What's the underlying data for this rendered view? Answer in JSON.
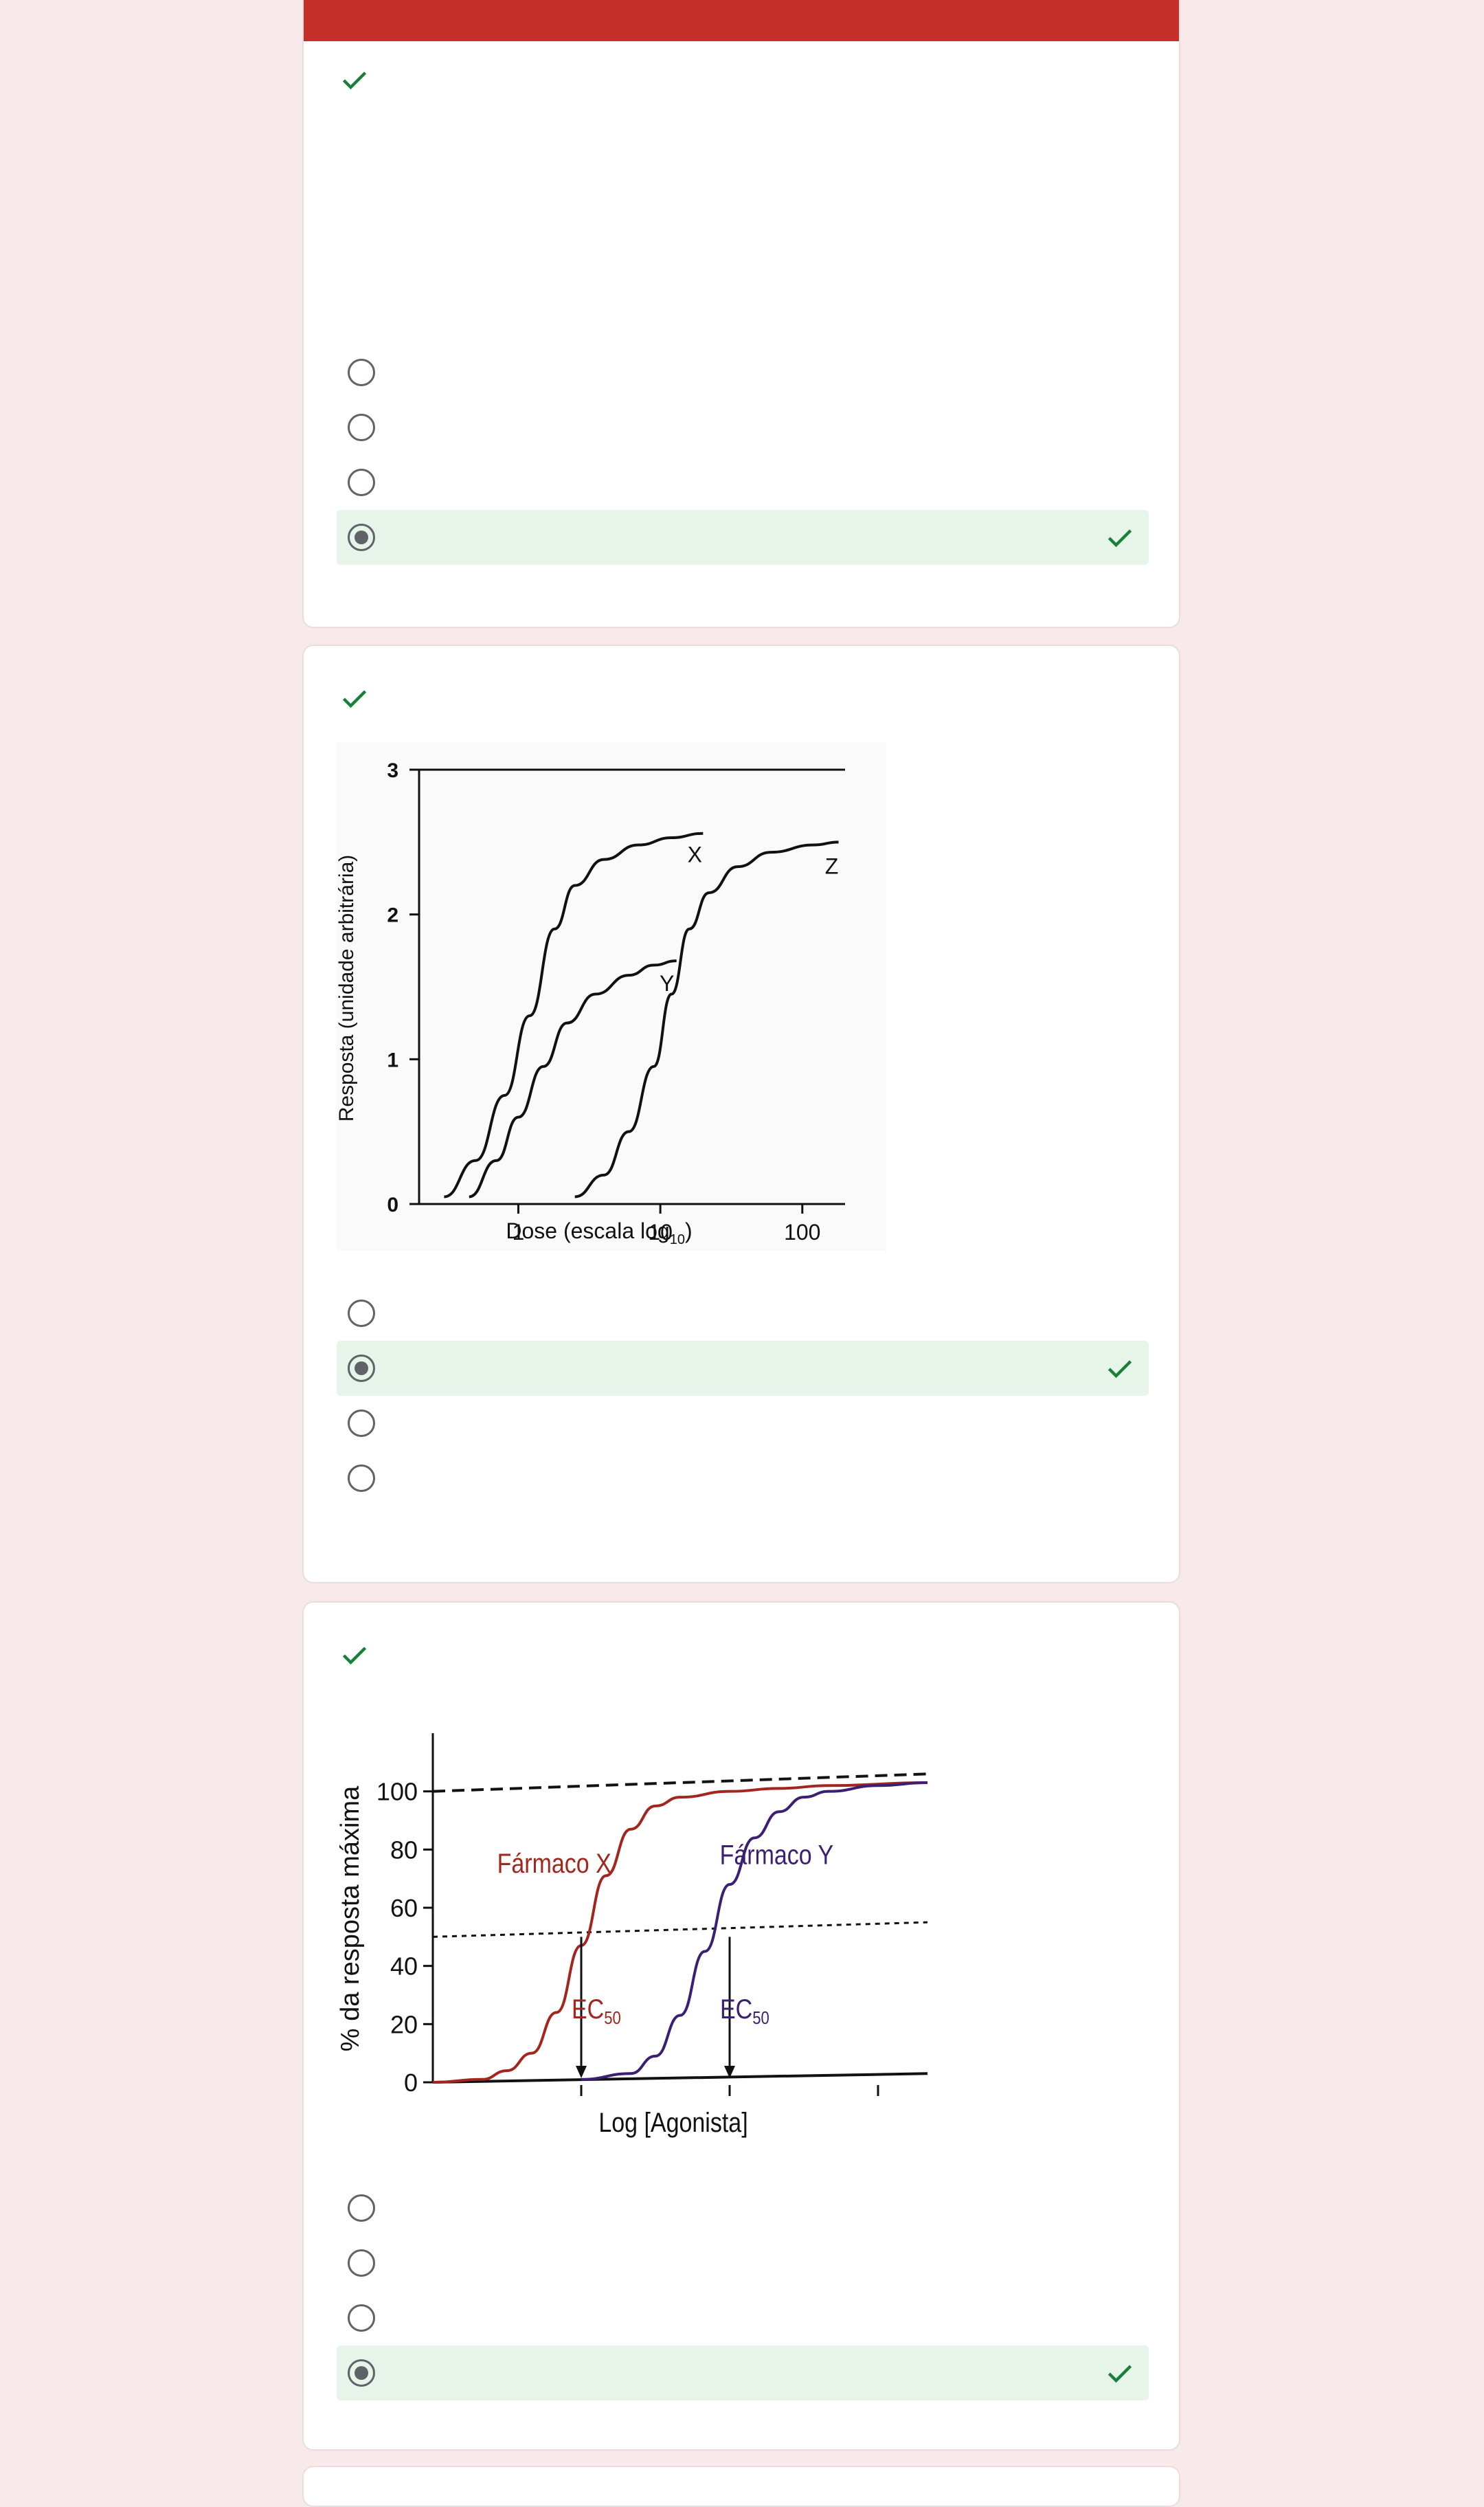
{
  "colors": {
    "page_bg": "#f8e9ea",
    "card_bg": "#ffffff",
    "header_bar": "#c5302a",
    "correct_green": "#188038",
    "selected_row_bg": "#e6f4ea",
    "radio_gray": "#5f6368",
    "drug_x_red": "#a3261e",
    "drug_y_purple": "#3b1f73"
  },
  "icons": {
    "score": "check-icon",
    "correct_option": "check-icon",
    "radio_unselected": "radio-unchecked-icon",
    "radio_selected": "radio-checked-icon"
  },
  "questions": [
    {
      "id": "q1",
      "has_figure": false,
      "options": [
        {
          "selected": false,
          "correct": false
        },
        {
          "selected": false,
          "correct": false
        },
        {
          "selected": false,
          "correct": false
        },
        {
          "selected": true,
          "correct": true
        }
      ]
    },
    {
      "id": "q2",
      "has_figure": true,
      "options": [
        {
          "selected": false,
          "correct": false
        },
        {
          "selected": true,
          "correct": true
        },
        {
          "selected": false,
          "correct": false
        },
        {
          "selected": false,
          "correct": false
        }
      ]
    },
    {
      "id": "q3",
      "has_figure": true,
      "options": [
        {
          "selected": false,
          "correct": false
        },
        {
          "selected": false,
          "correct": false
        },
        {
          "selected": false,
          "correct": false
        },
        {
          "selected": true,
          "correct": true
        }
      ]
    }
  ],
  "chart_data": [
    {
      "type": "line",
      "xlabel": "Dose (escala log",
      "xlabel_sub": "10",
      "xlabel_close": ")",
      "ylabel": "Resposta (unidade arbitrária)",
      "x_scale": "log",
      "xlim": [
        0.2,
        200
      ],
      "ylim": [
        0,
        3
      ],
      "x_ticks": [
        1,
        10,
        100
      ],
      "x_tick_labels": [
        "1",
        "10",
        "100"
      ],
      "y_ticks": [
        0,
        1,
        2,
        3
      ],
      "y_tick_labels": [
        "0",
        "1",
        "2",
        "3"
      ],
      "top_line": 3,
      "series": [
        {
          "name": "X",
          "x": [
            0.3,
            0.5,
            0.8,
            1.2,
            1.8,
            2.5,
            4,
            7,
            12,
            20
          ],
          "y": [
            0.05,
            0.3,
            0.75,
            1.3,
            1.9,
            2.2,
            2.38,
            2.48,
            2.53,
            2.56
          ]
        },
        {
          "name": "Y",
          "x": [
            0.45,
            0.7,
            1.0,
            1.5,
            2.2,
            3.5,
            6,
            9,
            13
          ],
          "y": [
            0.05,
            0.3,
            0.6,
            0.95,
            1.25,
            1.45,
            1.58,
            1.65,
            1.68
          ]
        },
        {
          "name": "Z",
          "x": [
            2.5,
            4,
            6,
            9,
            12,
            16,
            22,
            35,
            60,
            120,
            180
          ],
          "y": [
            0.05,
            0.2,
            0.5,
            0.95,
            1.45,
            1.9,
            2.15,
            2.33,
            2.43,
            2.48,
            2.5
          ]
        }
      ]
    },
    {
      "type": "line",
      "xlabel": "Log [Agonista]",
      "ylabel": "% da resposta máxima",
      "xlim": [
        0,
        10
      ],
      "ylim": [
        0,
        120
      ],
      "y_ticks": [
        0,
        20,
        40,
        60,
        80,
        100
      ],
      "y_tick_labels": [
        "0",
        "20",
        "40",
        "60",
        "80",
        "100"
      ],
      "x_ticks": [
        3,
        6,
        9
      ],
      "ec50_label": "EC",
      "ec50_sub": "50",
      "series": [
        {
          "name": "Fármaco X",
          "x": [
            0,
            1,
            1.5,
            2,
            2.5,
            3,
            3.5,
            4,
            4.5,
            5,
            6,
            7,
            8,
            10
          ],
          "y": [
            0,
            1,
            4,
            10,
            24,
            47,
            71,
            87,
            95,
            98,
            100,
            101,
            102,
            103
          ]
        },
        {
          "name": "Fármaco Y",
          "x": [
            3,
            4,
            4.5,
            5,
            5.5,
            6,
            6.5,
            7,
            7.5,
            8,
            9,
            10
          ],
          "y": [
            1,
            3,
            9,
            23,
            45,
            68,
            84,
            93,
            98,
            100,
            102,
            103
          ]
        }
      ],
      "reference_lines": [
        {
          "style": "dashed",
          "y_start": 100,
          "y_end": 106
        },
        {
          "style": "dotted",
          "y_start": 50,
          "y_end": 55
        },
        {
          "style": "solid",
          "y_start": 0,
          "y_end": 3
        }
      ],
      "ec50_markers": [
        3,
        6
      ]
    }
  ]
}
